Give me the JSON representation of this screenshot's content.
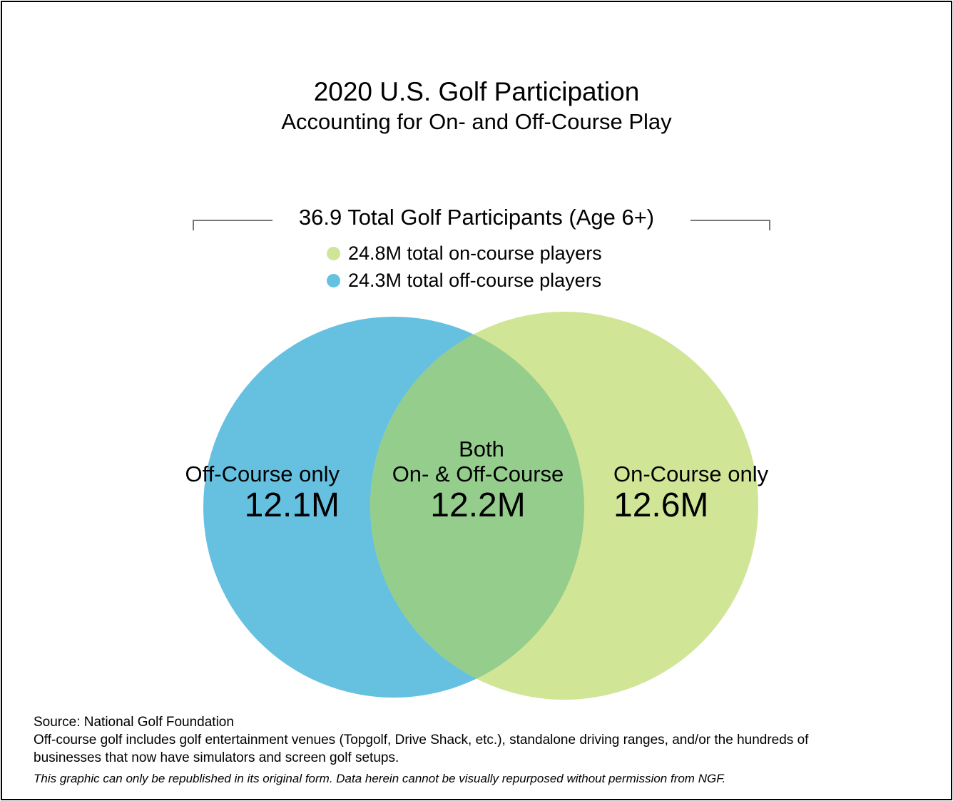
{
  "title": "2020 U.S. Golf Participation",
  "subtitle": "Accounting for On- and Off-Course Play",
  "total_label": "36.9 Total Golf Participants (Age 6+)",
  "legend": [
    {
      "label": "24.8M total on-course players",
      "color": "#d1e597"
    },
    {
      "label": "24.3M total off-course players",
      "color": "#66c1e1"
    }
  ],
  "venn": {
    "sets": [
      {
        "name": "Off-Course",
        "total_m": 24.3,
        "color": "#66c1e1"
      },
      {
        "name": "On-Course",
        "total_m": 24.8,
        "color": "#d1e597"
      }
    ],
    "overlap_color": "#94cd8c",
    "regions": {
      "off_only": {
        "label": "Off-Course only",
        "value": "12.1M"
      },
      "both": {
        "label_line1": "Both",
        "label_line2": "On- & Off-Course",
        "value": "12.2M"
      },
      "on_only": {
        "label": "On-Course only",
        "value": "12.6M"
      }
    }
  },
  "footer": {
    "source": "Source: National Golf Foundation",
    "note_line1": "Off-course golf includes golf entertainment venues (Topgolf, Drive Shack, etc.), standalone driving ranges, and/or the hundreds of",
    "note_line2": "businesses that now have simulators and screen golf setups.",
    "disclaimer": "This graphic can only be republished in its original form. Data herein cannot be visually repurposed without permission from NGF."
  }
}
